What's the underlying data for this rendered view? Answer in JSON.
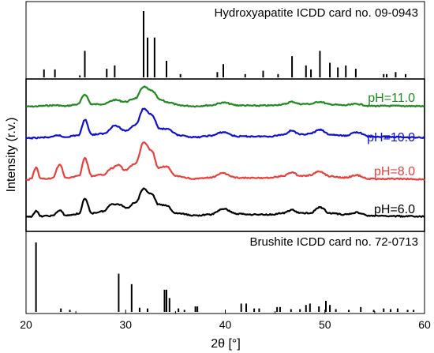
{
  "chart_data": {
    "type": "line",
    "xlabel": "2θ [°]",
    "ylabel": "Intensity (r.v.)",
    "xlim": [
      20,
      60
    ],
    "xticks": [
      20,
      30,
      40,
      50,
      60
    ],
    "colors": {
      "ph6": "#000000",
      "ph8": "#e8403c",
      "ph10": "#1010d0",
      "ph11": "#1f8a1f",
      "reference": "#000000"
    },
    "top_panel": {
      "title": "Hydroxyapatite ICDD card no. 09-0943",
      "peaks": [
        [
          21.8,
          0.12
        ],
        [
          22.9,
          0.12
        ],
        [
          25.4,
          0.03
        ],
        [
          25.9,
          0.4
        ],
        [
          28.1,
          0.13
        ],
        [
          28.9,
          0.18
        ],
        [
          31.8,
          1.0
        ],
        [
          32.2,
          0.6
        ],
        [
          32.9,
          0.6
        ],
        [
          34.1,
          0.25
        ],
        [
          35.5,
          0.05
        ],
        [
          39.2,
          0.08
        ],
        [
          39.8,
          0.2
        ],
        [
          42.0,
          0.05
        ],
        [
          43.8,
          0.1
        ],
        [
          45.3,
          0.05
        ],
        [
          46.7,
          0.32
        ],
        [
          48.1,
          0.18
        ],
        [
          48.6,
          0.12
        ],
        [
          49.5,
          0.4
        ],
        [
          50.5,
          0.22
        ],
        [
          51.3,
          0.15
        ],
        [
          52.1,
          0.18
        ],
        [
          53.1,
          0.13
        ],
        [
          55.9,
          0.05
        ],
        [
          56.2,
          0.05
        ],
        [
          57.1,
          0.08
        ],
        [
          58.1,
          0.05
        ]
      ]
    },
    "middle_panel": {
      "series": [
        {
          "name": "pH=11.0",
          "color": "#1f8a1f",
          "points": [
            [
              20,
              0
            ],
            [
              23.2,
              0.06
            ],
            [
              23.8,
              0.02
            ],
            [
              25.2,
              0.1
            ],
            [
              25.9,
              0.55
            ],
            [
              26.6,
              0.1
            ],
            [
              27.8,
              0.12
            ],
            [
              28.9,
              0.3
            ],
            [
              30.0,
              0.22
            ],
            [
              31.0,
              0.38
            ],
            [
              31.8,
              0.9
            ],
            [
              32.6,
              0.72
            ],
            [
              33.5,
              0.3
            ],
            [
              34.2,
              0.2
            ],
            [
              35.5,
              0.05
            ],
            [
              37.0,
              0.02
            ],
            [
              38.5,
              0.06
            ],
            [
              39.8,
              0.18
            ],
            [
              41.2,
              0.06
            ],
            [
              43.0,
              0.04
            ],
            [
              44.5,
              0.05
            ],
            [
              45.8,
              0.1
            ],
            [
              46.7,
              0.22
            ],
            [
              47.5,
              0.12
            ],
            [
              48.5,
              0.12
            ],
            [
              49.5,
              0.22
            ],
            [
              50.5,
              0.1
            ],
            [
              52.0,
              0.06
            ],
            [
              53.2,
              0.12
            ],
            [
              54.5,
              0.03
            ],
            [
              57,
              0.03
            ],
            [
              60,
              0.02
            ]
          ]
        },
        {
          "name": "pH=10.0",
          "color": "#1010d0",
          "points": [
            [
              20,
              0
            ],
            [
              22.5,
              0.03
            ],
            [
              23.2,
              0.1
            ],
            [
              23.8,
              0.04
            ],
            [
              25.3,
              0.1
            ],
            [
              25.9,
              0.62
            ],
            [
              26.6,
              0.12
            ],
            [
              27.8,
              0.15
            ],
            [
              28.9,
              0.42
            ],
            [
              30.0,
              0.25
            ],
            [
              31.0,
              0.45
            ],
            [
              31.8,
              0.98
            ],
            [
              32.6,
              0.8
            ],
            [
              33.4,
              0.32
            ],
            [
              34.1,
              0.3
            ],
            [
              35.5,
              0.08
            ],
            [
              37.0,
              0.03
            ],
            [
              38.5,
              0.08
            ],
            [
              39.8,
              0.2
            ],
            [
              41.2,
              0.06
            ],
            [
              43.0,
              0.06
            ],
            [
              44.5,
              0.06
            ],
            [
              45.8,
              0.12
            ],
            [
              46.7,
              0.26
            ],
            [
              47.5,
              0.12
            ],
            [
              48.5,
              0.15
            ],
            [
              49.5,
              0.28
            ],
            [
              50.5,
              0.12
            ],
            [
              52.0,
              0.08
            ],
            [
              53.2,
              0.2
            ],
            [
              54.5,
              0.05
            ],
            [
              57,
              0.04
            ],
            [
              60,
              0.02
            ]
          ]
        },
        {
          "name": "pH=8.0",
          "color": "#e8403c",
          "points": [
            [
              20,
              0
            ],
            [
              20.5,
              0.03
            ],
            [
              21.0,
              0.32
            ],
            [
              21.5,
              0.03
            ],
            [
              22.6,
              0.04
            ],
            [
              23.4,
              0.4
            ],
            [
              24.0,
              0.05
            ],
            [
              25.3,
              0.1
            ],
            [
              25.9,
              0.55
            ],
            [
              26.6,
              0.1
            ],
            [
              27.8,
              0.14
            ],
            [
              28.6,
              0.3
            ],
            [
              29.3,
              0.4
            ],
            [
              29.9,
              0.25
            ],
            [
              31.0,
              0.42
            ],
            [
              31.8,
              0.95
            ],
            [
              32.6,
              0.75
            ],
            [
              33.3,
              0.3
            ],
            [
              34.1,
              0.35
            ],
            [
              35.0,
              0.1
            ],
            [
              37.0,
              0.03
            ],
            [
              38.5,
              0.06
            ],
            [
              39.7,
              0.17
            ],
            [
              41.2,
              0.06
            ],
            [
              43.0,
              0.05
            ],
            [
              44.5,
              0.06
            ],
            [
              45.8,
              0.1
            ],
            [
              46.7,
              0.2
            ],
            [
              47.5,
              0.1
            ],
            [
              48.5,
              0.12
            ],
            [
              49.4,
              0.22
            ],
            [
              50.5,
              0.1
            ],
            [
              52.0,
              0.06
            ],
            [
              53.2,
              0.12
            ],
            [
              54.5,
              0.03
            ],
            [
              57,
              0.03
            ],
            [
              60,
              0.02
            ]
          ]
        },
        {
          "name": "pH=6.0",
          "color": "#000000",
          "points": [
            [
              20,
              0
            ],
            [
              20.5,
              0.02
            ],
            [
              21.0,
              0.18
            ],
            [
              21.5,
              0.03
            ],
            [
              22.6,
              0.04
            ],
            [
              23.4,
              0.2
            ],
            [
              24.0,
              0.05
            ],
            [
              25.3,
              0.1
            ],
            [
              25.9,
              0.55
            ],
            [
              26.6,
              0.12
            ],
            [
              27.8,
              0.18
            ],
            [
              28.6,
              0.4
            ],
            [
              29.4,
              0.38
            ],
            [
              30.1,
              0.28
            ],
            [
              31.0,
              0.45
            ],
            [
              31.8,
              0.85
            ],
            [
              32.6,
              0.7
            ],
            [
              33.3,
              0.38
            ],
            [
              34.1,
              0.35
            ],
            [
              35.0,
              0.12
            ],
            [
              37.0,
              0.05
            ],
            [
              38.5,
              0.08
            ],
            [
              39.8,
              0.25
            ],
            [
              41.2,
              0.1
            ],
            [
              43.0,
              0.08
            ],
            [
              44.5,
              0.08
            ],
            [
              45.8,
              0.12
            ],
            [
              46.7,
              0.22
            ],
            [
              47.5,
              0.12
            ],
            [
              48.5,
              0.12
            ],
            [
              49.5,
              0.3
            ],
            [
              50.5,
              0.12
            ],
            [
              52.0,
              0.08
            ],
            [
              53.2,
              0.14
            ],
            [
              54.5,
              0.04
            ],
            [
              57,
              0.03
            ],
            [
              60,
              0.02
            ]
          ]
        }
      ]
    },
    "bottom_panel": {
      "title": "Brushite ICDD card no. 72-0713",
      "peaks": [
        [
          21.0,
          1.0
        ],
        [
          23.5,
          0.05
        ],
        [
          24.4,
          0.03
        ],
        [
          29.3,
          0.55
        ],
        [
          30.6,
          0.4
        ],
        [
          31.4,
          0.06
        ],
        [
          32.2,
          0.05
        ],
        [
          33.9,
          0.32
        ],
        [
          34.1,
          0.32
        ],
        [
          34.4,
          0.2
        ],
        [
          35.3,
          0.05
        ],
        [
          35.9,
          0.03
        ],
        [
          37.0,
          0.08
        ],
        [
          37.2,
          0.08
        ],
        [
          41.6,
          0.12
        ],
        [
          42.1,
          0.12
        ],
        [
          42.9,
          0.05
        ],
        [
          43.4,
          0.05
        ],
        [
          45.2,
          0.07
        ],
        [
          45.5,
          0.07
        ],
        [
          46.6,
          0.04
        ],
        [
          47.5,
          0.04
        ],
        [
          48.1,
          0.1
        ],
        [
          48.5,
          0.12
        ],
        [
          49.4,
          0.08
        ],
        [
          50.1,
          0.16
        ],
        [
          50.5,
          0.1
        ],
        [
          51.1,
          0.04
        ],
        [
          52.4,
          0.03
        ],
        [
          53.6,
          0.07
        ],
        [
          54.9,
          0.03
        ],
        [
          55.9,
          0.05
        ],
        [
          56.6,
          0.04
        ],
        [
          57.3,
          0.05
        ],
        [
          58.3,
          0.03
        ],
        [
          58.9,
          0.03
        ]
      ]
    }
  }
}
